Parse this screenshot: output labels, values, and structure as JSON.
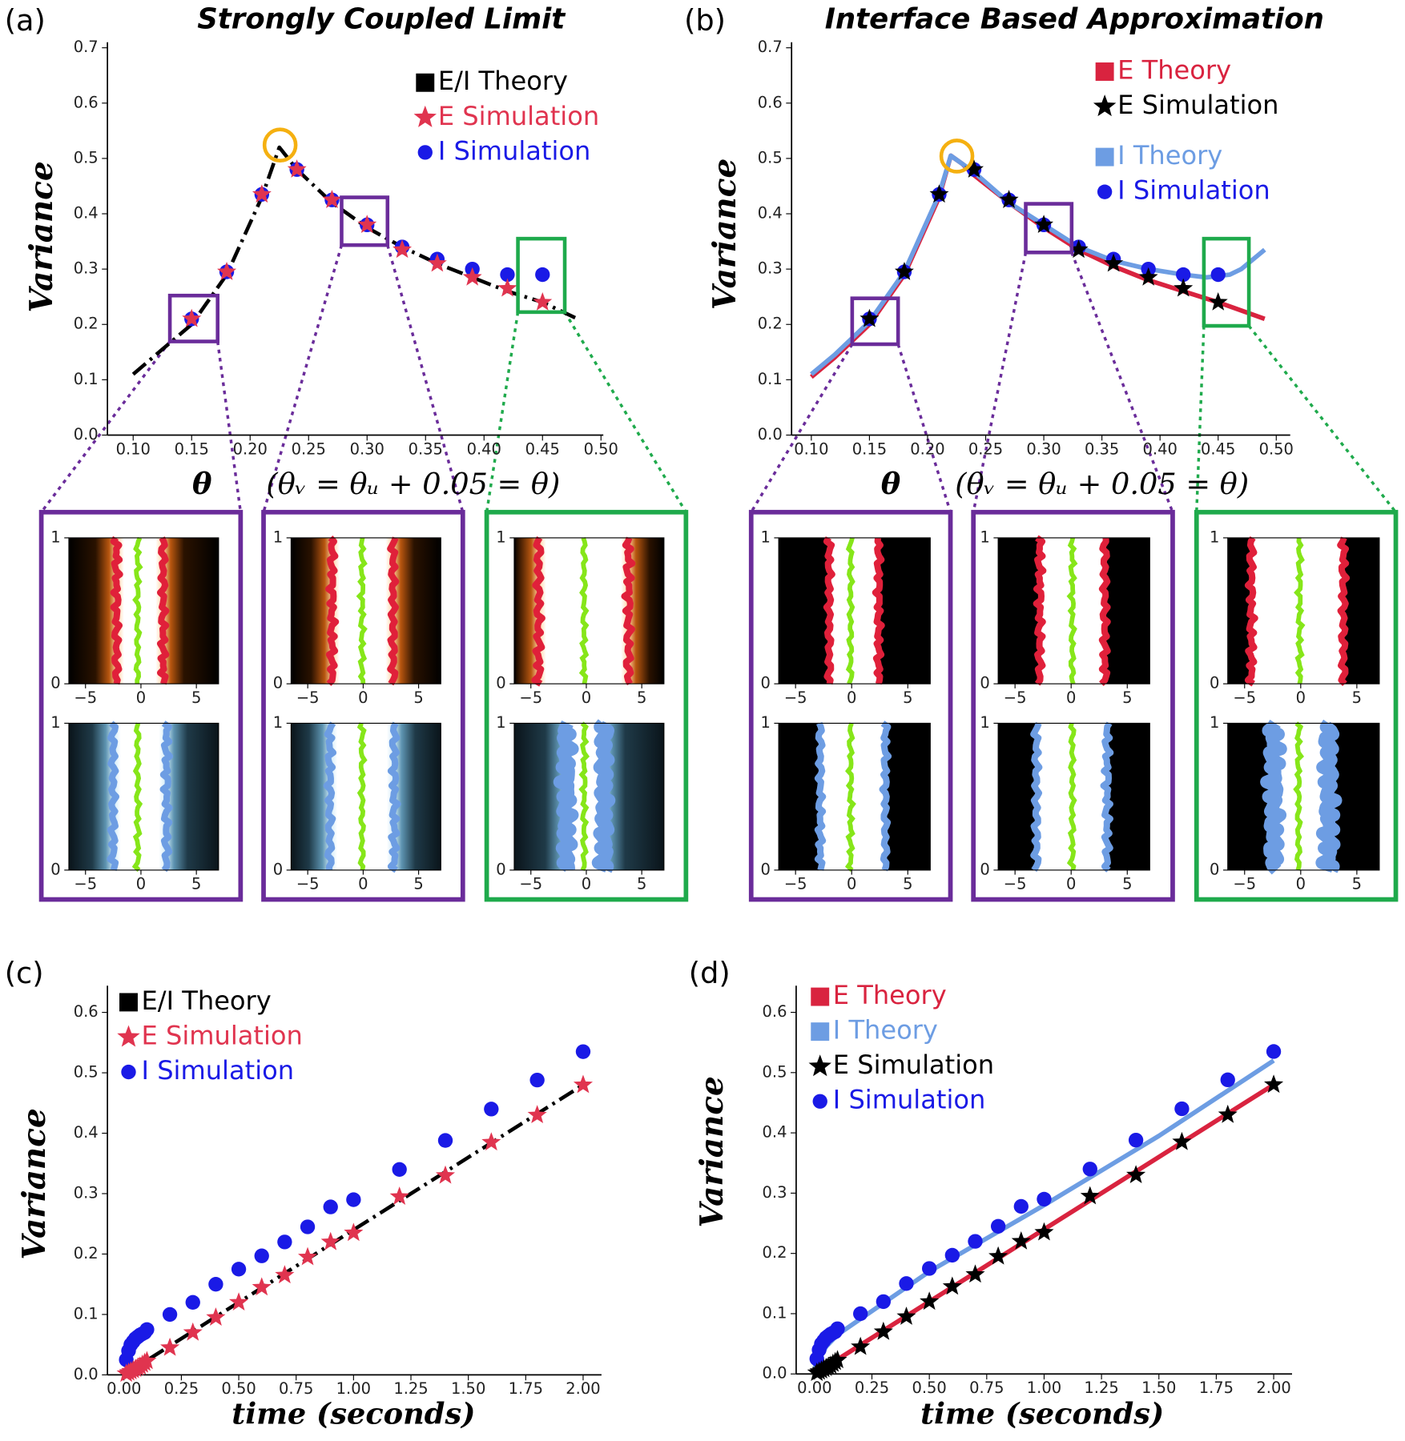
{
  "chart_data": [
    {
      "type": "line",
      "panel_label": "(a)",
      "title": "Strongly Coupled Limit",
      "xlabel": "θ",
      "xlabel_note": "(θᵥ = θᵤ + 0.05 = θ)",
      "ylabel": "Variance",
      "xlim": [
        0.078,
        0.502
      ],
      "ylim": [
        0,
        0.7
      ],
      "xticks": [
        {
          "value": 0.1,
          "label": "0.10"
        },
        0.15,
        {
          "value": 0.2,
          "label": "0.20"
        },
        0.25,
        {
          "value": 0.3,
          "label": "0.30"
        },
        0.35,
        {
          "value": 0.4,
          "label": "0.40"
        },
        0.45,
        {
          "value": 0.5,
          "label": "0.50"
        }
      ],
      "yticks": [
        {
          "value": 0,
          "label": "0.0"
        },
        0.1,
        0.2,
        0.3,
        0.4,
        0.5,
        0.6,
        0.7
      ],
      "series": [
        {
          "name": "E/I Theory",
          "color": "#000000",
          "marker": "line",
          "linestyle": "dashdot",
          "x": [
            0.1,
            0.15,
            0.18,
            0.21,
            0.225,
            0.24,
            0.27,
            0.3,
            0.33,
            0.36,
            0.39,
            0.42,
            0.45,
            0.48
          ],
          "values": [
            0.11,
            0.2,
            0.29,
            0.43,
            0.52,
            0.48,
            0.42,
            0.375,
            0.34,
            0.31,
            0.285,
            0.26,
            0.24,
            0.21
          ]
        },
        {
          "name": "E Simulation",
          "color": "#e0344f",
          "marker": "star",
          "x": [
            0.15,
            0.18,
            0.21,
            0.24,
            0.27,
            0.3,
            0.33,
            0.36,
            0.39,
            0.42,
            0.45
          ],
          "values": [
            0.21,
            0.295,
            0.435,
            0.48,
            0.425,
            0.38,
            0.335,
            0.31,
            0.285,
            0.265,
            0.24
          ]
        },
        {
          "name": "I Simulation",
          "color": "#1a1ae6",
          "marker": "circle",
          "x": [
            0.15,
            0.18,
            0.21,
            0.24,
            0.27,
            0.3,
            0.33,
            0.36,
            0.39,
            0.42,
            0.45
          ],
          "values": [
            0.21,
            0.295,
            0.435,
            0.48,
            0.425,
            0.38,
            0.34,
            0.318,
            0.3,
            0.29,
            0.29
          ]
        }
      ]
    },
    {
      "type": "line",
      "panel_label": "(b)",
      "title": "Interface Based Approximation",
      "xlabel": "θ",
      "xlabel_note": "(θᵥ = θᵤ + 0.05 = θ)",
      "ylabel": "Variance",
      "xlim": [
        0.083,
        0.512
      ],
      "ylim": [
        0,
        0.7
      ],
      "xticks": [
        {
          "value": 0.1,
          "label": "0.10"
        },
        0.15,
        {
          "value": 0.2,
          "label": "0.20"
        },
        0.25,
        {
          "value": 0.3,
          "label": "0.30"
        },
        0.35,
        {
          "value": 0.4,
          "label": "0.40"
        },
        0.45,
        {
          "value": 0.5,
          "label": "0.50"
        }
      ],
      "yticks": [
        {
          "value": 0,
          "label": "0.0"
        },
        0.1,
        0.2,
        0.3,
        0.4,
        0.5,
        0.6,
        0.7
      ],
      "series": [
        {
          "name": "E Theory",
          "color": "#d9233f",
          "marker": "line",
          "linestyle": "solid",
          "x": [
            0.1,
            0.12,
            0.15,
            0.18,
            0.21,
            0.22,
            0.23,
            0.24,
            0.27,
            0.3,
            0.33,
            0.36,
            0.39,
            0.42,
            0.45,
            0.49
          ],
          "values": [
            0.105,
            0.14,
            0.2,
            0.29,
            0.43,
            0.505,
            0.49,
            0.47,
            0.42,
            0.375,
            0.335,
            0.305,
            0.28,
            0.26,
            0.24,
            0.21
          ]
        },
        {
          "name": "E Simulation",
          "color": "#000000",
          "marker": "star",
          "x": [
            0.15,
            0.18,
            0.21,
            0.24,
            0.27,
            0.3,
            0.33,
            0.36,
            0.39,
            0.42,
            0.45
          ],
          "values": [
            0.21,
            0.295,
            0.435,
            0.48,
            0.425,
            0.38,
            0.335,
            0.31,
            0.285,
            0.265,
            0.24
          ]
        },
        {
          "name": "I Theory",
          "color": "#6d9de3",
          "marker": "line",
          "linestyle": "solid",
          "x": [
            0.1,
            0.12,
            0.15,
            0.18,
            0.21,
            0.22,
            0.23,
            0.24,
            0.27,
            0.3,
            0.33,
            0.36,
            0.39,
            0.42,
            0.44,
            0.46,
            0.47,
            0.49
          ],
          "values": [
            0.11,
            0.145,
            0.205,
            0.295,
            0.435,
            0.505,
            0.49,
            0.475,
            0.42,
            0.38,
            0.34,
            0.315,
            0.3,
            0.29,
            0.285,
            0.29,
            0.3,
            0.335
          ]
        },
        {
          "name": "I Simulation",
          "color": "#1a1ae6",
          "marker": "circle",
          "x": [
            0.15,
            0.18,
            0.21,
            0.24,
            0.27,
            0.3,
            0.33,
            0.36,
            0.39,
            0.42,
            0.45
          ],
          "values": [
            0.21,
            0.295,
            0.435,
            0.48,
            0.425,
            0.38,
            0.34,
            0.318,
            0.3,
            0.29,
            0.29
          ]
        }
      ]
    },
    {
      "type": "line",
      "panel_label": "(c)",
      "xlabel": "time  (seconds)",
      "ylabel": "Variance",
      "xlim": [
        -0.072,
        2.08
      ],
      "ylim": [
        0,
        0.635
      ],
      "xticks": [
        {
          "value": 0,
          "label": "0.00"
        },
        0.25,
        {
          "value": 0.5,
          "label": "0.50"
        },
        0.75,
        {
          "value": 1,
          "label": "1.00"
        },
        1.25,
        {
          "value": 1.5,
          "label": "1.50"
        },
        1.75,
        {
          "value": 2,
          "label": "2.00"
        }
      ],
      "yticks": [
        {
          "value": 0,
          "label": "0.0"
        },
        0.1,
        0.2,
        0.3,
        0.4,
        0.5,
        0.6
      ],
      "series": [
        {
          "name": "E/I Theory",
          "color": "#000000",
          "marker": "line",
          "linestyle": "dashdot",
          "x": [
            0,
            0.5,
            1,
            1.5,
            2
          ],
          "values": [
            0,
            0.12,
            0.24,
            0.36,
            0.48
          ]
        },
        {
          "name": "E Simulation",
          "color": "#e0344f",
          "marker": "star",
          "x": [
            0.01,
            0.02,
            0.03,
            0.04,
            0.05,
            0.06,
            0.07,
            0.08,
            0.09,
            0.1,
            0.2,
            0.3,
            0.4,
            0.5,
            0.6,
            0.7,
            0.8,
            0.9,
            1,
            1.2,
            1.4,
            1.6,
            1.8,
            2
          ],
          "values": [
            0.002,
            0.004,
            0.006,
            0.008,
            0.01,
            0.012,
            0.014,
            0.017,
            0.02,
            0.023,
            0.045,
            0.07,
            0.095,
            0.12,
            0.145,
            0.165,
            0.195,
            0.22,
            0.235,
            0.295,
            0.33,
            0.385,
            0.43,
            0.48
          ]
        },
        {
          "name": "I Simulation",
          "color": "#1a1ae6",
          "marker": "circle",
          "x": [
            0.01,
            0.02,
            0.03,
            0.04,
            0.05,
            0.06,
            0.07,
            0.08,
            0.09,
            0.1,
            0.2,
            0.3,
            0.4,
            0.5,
            0.6,
            0.7,
            0.8,
            0.9,
            1,
            1.2,
            1.4,
            1.6,
            1.8,
            2
          ],
          "values": [
            0.025,
            0.04,
            0.05,
            0.055,
            0.06,
            0.063,
            0.066,
            0.068,
            0.07,
            0.075,
            0.1,
            0.12,
            0.15,
            0.175,
            0.197,
            0.22,
            0.245,
            0.278,
            0.29,
            0.34,
            0.388,
            0.44,
            0.488,
            0.535
          ]
        }
      ]
    },
    {
      "type": "line",
      "panel_label": "(d)",
      "xlabel": "time  (seconds)",
      "ylabel": "Variance",
      "xlim": [
        -0.08,
        2.08
      ],
      "ylim": [
        0,
        0.635
      ],
      "xticks": [
        {
          "value": 0,
          "label": "0.00"
        },
        0.25,
        {
          "value": 0.5,
          "label": "0.50"
        },
        0.75,
        {
          "value": 1,
          "label": "1.00"
        },
        1.25,
        {
          "value": 1.5,
          "label": "1.50"
        },
        1.75,
        {
          "value": 2,
          "label": "2.00"
        }
      ],
      "yticks": [
        {
          "value": 0,
          "label": "0.0"
        },
        0.1,
        0.2,
        0.3,
        0.4,
        0.5,
        0.6
      ],
      "series": [
        {
          "name": "E Theory",
          "color": "#d9233f",
          "marker": "line",
          "linestyle": "solid",
          "x": [
            0,
            2
          ],
          "values": [
            0,
            0.48
          ]
        },
        {
          "name": "I Theory",
          "color": "#6d9de3",
          "marker": "line",
          "linestyle": "solid",
          "x": [
            0,
            0.05,
            0.1,
            0.5,
            1,
            1.5,
            2
          ],
          "values": [
            0.01,
            0.045,
            0.065,
            0.17,
            0.28,
            0.395,
            0.52
          ]
        },
        {
          "name": "E Simulation",
          "color": "#000000",
          "marker": "star",
          "x": [
            0.01,
            0.02,
            0.03,
            0.04,
            0.05,
            0.06,
            0.07,
            0.08,
            0.09,
            0.1,
            0.2,
            0.3,
            0.4,
            0.5,
            0.6,
            0.7,
            0.8,
            0.9,
            1,
            1.2,
            1.4,
            1.6,
            1.8,
            2
          ],
          "values": [
            0.002,
            0.004,
            0.006,
            0.008,
            0.01,
            0.012,
            0.014,
            0.017,
            0.02,
            0.023,
            0.045,
            0.07,
            0.095,
            0.12,
            0.145,
            0.165,
            0.195,
            0.22,
            0.235,
            0.295,
            0.33,
            0.385,
            0.43,
            0.48
          ]
        },
        {
          "name": "I Simulation",
          "color": "#1a1ae6",
          "marker": "circle",
          "x": [
            0.01,
            0.02,
            0.03,
            0.04,
            0.05,
            0.06,
            0.07,
            0.08,
            0.09,
            0.1,
            0.2,
            0.3,
            0.4,
            0.5,
            0.6,
            0.7,
            0.8,
            0.9,
            1,
            1.2,
            1.4,
            1.6,
            1.8,
            2
          ],
          "values": [
            0.025,
            0.04,
            0.05,
            0.055,
            0.06,
            0.063,
            0.066,
            0.068,
            0.07,
            0.075,
            0.1,
            0.12,
            0.15,
            0.175,
            0.197,
            0.22,
            0.245,
            0.278,
            0.29,
            0.34,
            0.388,
            0.44,
            0.488,
            0.535
          ]
        }
      ]
    },
    {
      "type": "heatmap",
      "xlim": [
        -6.5,
        7
      ],
      "ylim": [
        0,
        1
      ],
      "xticks": [
        {
          "value": -5,
          "label": "−5"
        },
        0,
        5
      ],
      "yticks": [
        0,
        1
      ]
    },
    {
      "type": "heatmap",
      "xlim": [
        -6.5,
        7
      ],
      "ylim": [
        0,
        1
      ],
      "xticks": [
        {
          "value": -5,
          "label": "−5"
        },
        0,
        5
      ],
      "yticks": [
        0,
        1
      ]
    },
    {
      "type": "heatmap",
      "xlim": [
        -6.5,
        7
      ],
      "ylim": [
        0,
        1
      ],
      "xticks": [
        {
          "value": -5,
          "label": "−5"
        },
        0,
        5
      ],
      "yticks": [
        0,
        1
      ]
    },
    {
      "type": "heatmap",
      "xlim": [
        -6.5,
        7
      ],
      "ylim": [
        0,
        1
      ],
      "xticks": [
        {
          "value": -5,
          "label": "−5"
        },
        0,
        5
      ],
      "yticks": [
        0,
        1
      ]
    },
    {
      "type": "heatmap",
      "xlim": [
        -6.5,
        7
      ],
      "ylim": [
        0,
        1
      ],
      "xticks": [
        {
          "value": -5,
          "label": "−5"
        },
        0,
        5
      ],
      "yticks": [
        0,
        1
      ]
    },
    {
      "type": "heatmap",
      "xlim": [
        -6.5,
        7
      ],
      "ylim": [
        0,
        1
      ],
      "xticks": [
        {
          "value": -5,
          "label": "−5"
        },
        0,
        5
      ],
      "yticks": [
        0,
        1
      ]
    },
    {
      "type": "heatmap",
      "xlim": [
        -6.5,
        7
      ],
      "ylim": [
        0,
        1
      ],
      "xticks": [
        {
          "value": -5,
          "label": "−5"
        },
        0,
        5
      ],
      "yticks": [
        0,
        1
      ]
    },
    {
      "type": "heatmap",
      "xlim": [
        -6.5,
        7
      ],
      "ylim": [
        0,
        1
      ],
      "xticks": [
        {
          "value": -5,
          "label": "−5"
        },
        0,
        5
      ],
      "yticks": [
        0,
        1
      ]
    },
    {
      "type": "heatmap",
      "xlim": [
        -6.5,
        7
      ],
      "ylim": [
        0,
        1
      ],
      "xticks": [
        {
          "value": -5,
          "label": "−5"
        },
        0,
        5
      ],
      "yticks": [
        0,
        1
      ]
    },
    {
      "type": "heatmap",
      "xlim": [
        -6.5,
        7
      ],
      "ylim": [
        0,
        1
      ],
      "xticks": [
        {
          "value": -5,
          "label": "−5"
        },
        0,
        5
      ],
      "yticks": [
        0,
        1
      ]
    },
    {
      "type": "heatmap",
      "xlim": [
        -6.5,
        7
      ],
      "ylim": [
        0,
        1
      ],
      "xticks": [
        {
          "value": -5,
          "label": "−5"
        },
        0,
        5
      ],
      "yticks": [
        0,
        1
      ]
    },
    {
      "type": "heatmap",
      "xlim": [
        -6.5,
        7
      ],
      "ylim": [
        0,
        1
      ],
      "xticks": [
        {
          "value": -5,
          "label": "−5"
        },
        0,
        5
      ],
      "yticks": [
        0,
        1
      ]
    }
  ]
}
